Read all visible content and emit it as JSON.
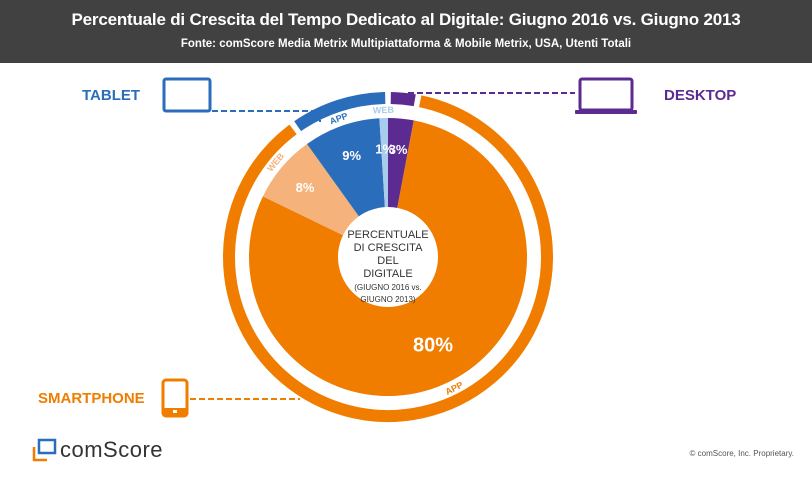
{
  "header": {
    "title": "Percentuale di Crescita del Tempo Dedicato al Digitale: Giugno 2016 vs. Giugno 2013",
    "subtitle": "Fonte: comScore Media Metrix Multipiattaforma & Mobile Metrix, USA, Utenti Totali"
  },
  "devices": {
    "tablet": {
      "label": "TABLET",
      "icon": "tablet-icon",
      "color": "#2a6ebb"
    },
    "desktop": {
      "label": "DESKTOP",
      "icon": "laptop-icon",
      "color": "#5c2b91"
    },
    "smartphone": {
      "label": "SMARTPHONE",
      "icon": "smartphone-icon",
      "color": "#f07d00"
    }
  },
  "center_label": {
    "line1": "PERCENTUALE",
    "line2": "DI CRESCITA",
    "line3": "DEL",
    "line4": "DIGITALE",
    "line5": "(GIUGNO 2016 vs.",
    "line6": "GIUGNO 2013)"
  },
  "chart_data": {
    "type": "pie",
    "title": "Percentuale di Crescita del Tempo Dedicato al Digitale: Giugno 2016 vs. Giugno 2013",
    "subtitle": "Fonte: comScore Media Metrix Multipiattaforma & Mobile Metrix, USA, Utenti Totali",
    "center_text": "PERCENTUALE DI CRESCITA DEL DIGITALE (GIUGNO 2016 vs. GIUGNO 2013)",
    "slices": [
      {
        "device": "Desktop",
        "channel": "",
        "value": 3,
        "label": "3%",
        "color": "#5c2b91"
      },
      {
        "device": "Smartphone",
        "channel": "APP",
        "value": 80,
        "label": "80%",
        "color": "#f07d00"
      },
      {
        "device": "Smartphone",
        "channel": "WEB",
        "value": 8,
        "label": "8%",
        "color": "#f5b27a"
      },
      {
        "device": "Tablet",
        "channel": "APP",
        "value": 9,
        "label": "9%",
        "color": "#2a6ebb"
      },
      {
        "device": "Tablet",
        "channel": "WEB",
        "value": 1,
        "label": "1%",
        "color": "#a9cbec"
      }
    ],
    "outer_ring": [
      {
        "device": "Desktop",
        "value": 3,
        "color": "#5c2b91"
      },
      {
        "device": "Smartphone",
        "value": 88,
        "color": "#f07d00",
        "labels": [
          "APP",
          "WEB"
        ]
      },
      {
        "device": "Tablet",
        "value": 10,
        "color": "#2a6ebb",
        "labels": [
          "APP",
          "WEB"
        ]
      }
    ],
    "legend": [
      "TABLET",
      "DESKTOP",
      "SMARTPHONE"
    ]
  },
  "footer": {
    "logo": "comScore",
    "copyright": "© comScore, Inc. Proprietary."
  }
}
